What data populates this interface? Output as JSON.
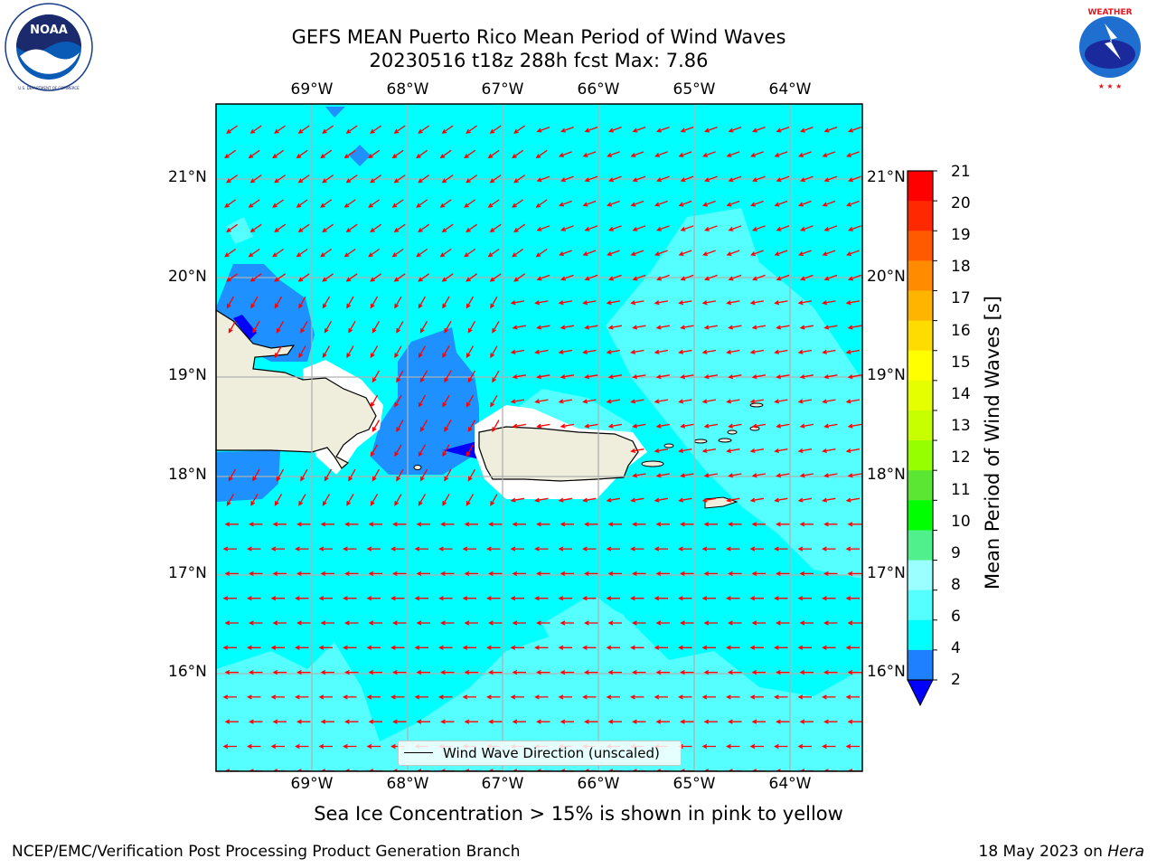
{
  "title": {
    "line1": "GEFS MEAN Puerto Rico Mean Period of Wind Waves",
    "line2": "20230516 t18z 288h fcst   Max: 7.86"
  },
  "logos": {
    "noaa": {
      "name": "noaa-logo",
      "text": "NOAA",
      "ring_text": "NATIONAL OCEANIC AND ATMOSPHERIC ADMINISTRATION · U.S. DEPARTMENT OF COMMERCE"
    },
    "nws": {
      "name": "nws-logo",
      "ring_text": "NATIONAL WEATHER SERVICE"
    }
  },
  "map": {
    "lon_labels": [
      "69°W",
      "68°W",
      "67°W",
      "66°W",
      "65°W",
      "64°W"
    ],
    "lat_labels": [
      "21°N",
      "20°N",
      "19°N",
      "18°N",
      "17°N",
      "16°N"
    ],
    "colors": {
      "ocean_main": "#00ffff",
      "ocean_high": "#55ffff",
      "ocean_low": "#1e90ff",
      "ocean_min": "#0000ff",
      "land": "#efeddc",
      "arrow": "#ff0000",
      "grid": "#b0b0b0"
    }
  },
  "colorbar": {
    "label": "Mean Period of Wind Waves [s]",
    "ticks": [
      "21",
      "20",
      "19",
      "18",
      "17",
      "16",
      "15",
      "14",
      "13",
      "12",
      "11",
      "10",
      "9",
      "8",
      "6",
      "4",
      "2"
    ],
    "colors": [
      "#ff0000",
      "#ff2800",
      "#ff5a00",
      "#ff8c00",
      "#ffb400",
      "#ffdc00",
      "#ffff00",
      "#e6ff00",
      "#c8ff00",
      "#96ff00",
      "#5ae632",
      "#00ff00",
      "#50f08c",
      "#9cffff",
      "#55ffff",
      "#00ffff",
      "#1e7fff"
    ],
    "extend_color": "#0000ff"
  },
  "legend": {
    "label": "Wind Wave Direction (unscaled)"
  },
  "footer": {
    "note": "Sea Ice Concentration > 15% is shown in pink to yellow",
    "left": "NCEP/EMC/Verification Post Processing Product Generation Branch",
    "date": "18 May 2023 on ",
    "host": "Hera"
  }
}
